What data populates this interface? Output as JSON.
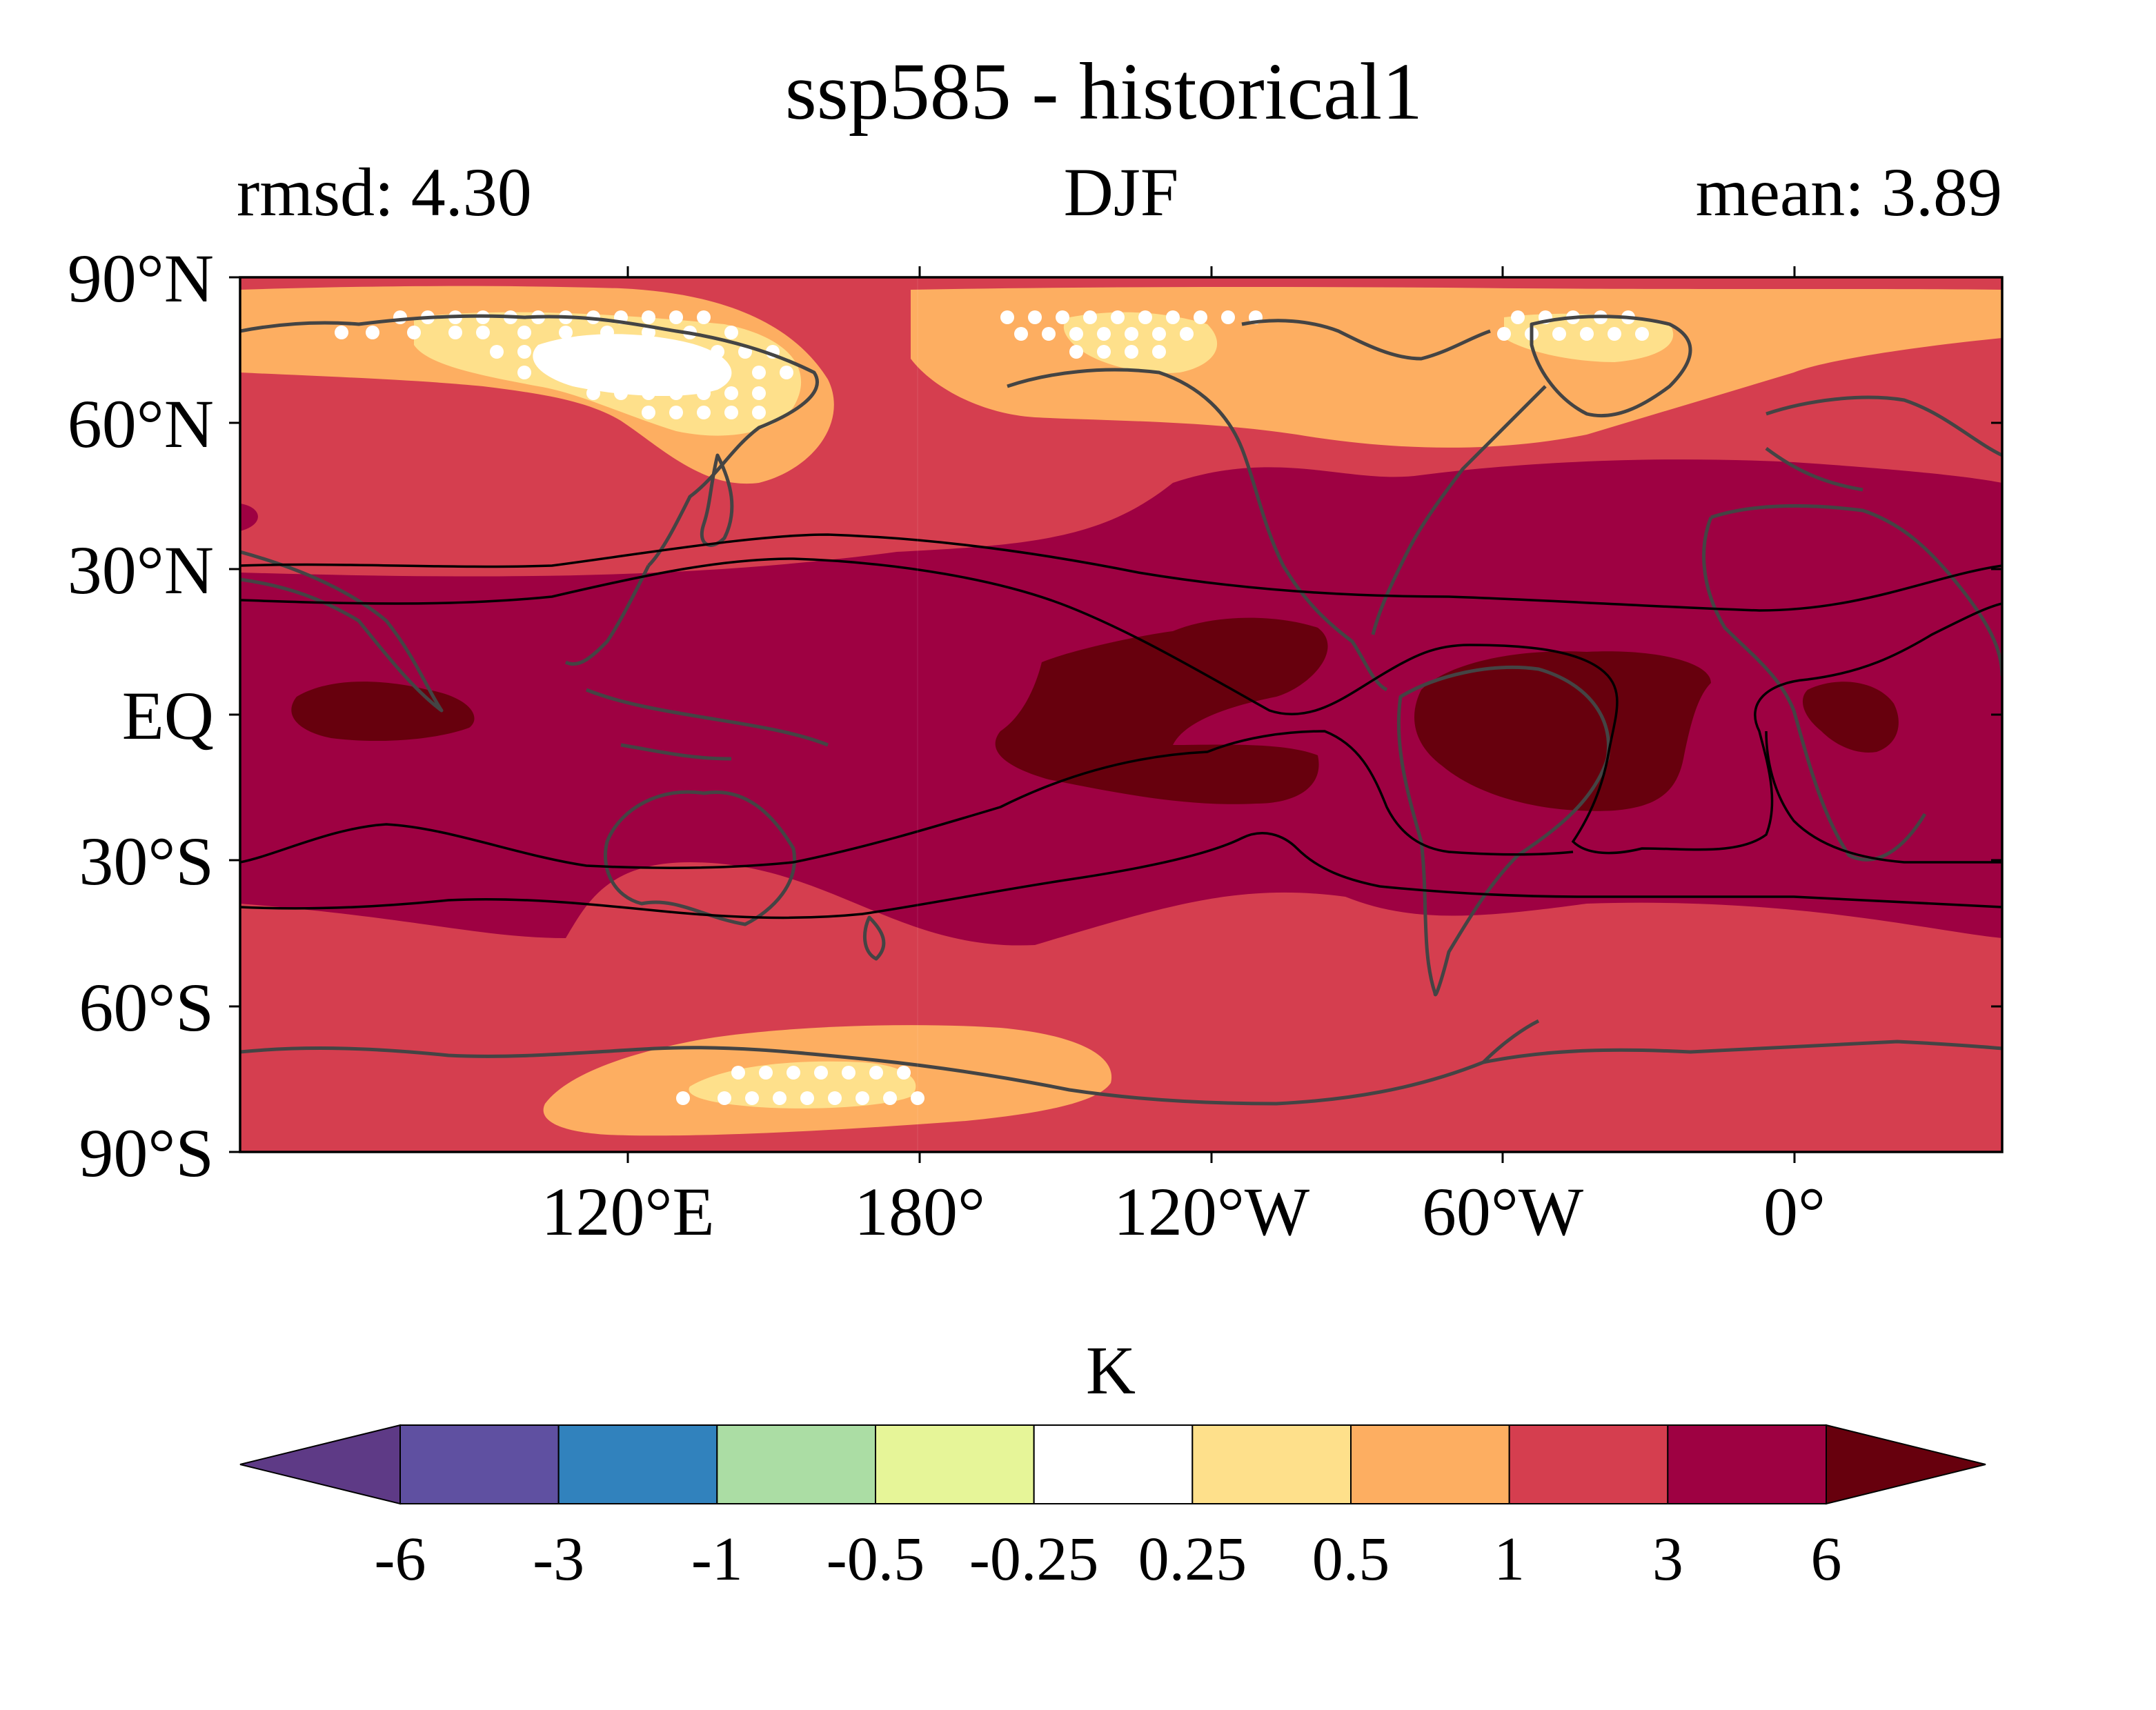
{
  "title": "ssp585 - historical1",
  "subtitle_left": "rmsd: 4.30",
  "subtitle_center": "DJF",
  "subtitle_right": "mean: 3.89",
  "lat_labels": [
    "90°N",
    "60°N",
    "30°N",
    "EQ",
    "30°S",
    "60°S",
    "90°S"
  ],
  "lon_labels": [
    "120°E",
    "180°",
    "120°W",
    "60°W",
    "0°"
  ],
  "colorbar": {
    "units": "K",
    "tick_labels": [
      "-6",
      "-3",
      "-1",
      "-0.5",
      "-0.25",
      "0.25",
      "0.5",
      "1",
      "3",
      "6"
    ],
    "colors": [
      "#5e3a86",
      "#5f50a1",
      "#3182bd",
      "#abdda4",
      "#e6f598",
      "#ffffff",
      "#fee08b",
      "#fdae61",
      "#d53e4f",
      "#9e0142",
      "#67000d"
    ]
  },
  "colors": {
    "level_0_25_to_0_5": "#fee08b",
    "level_0_5_to_1": "#fdae61",
    "level_1_to_3": "#d53e4f",
    "level_3_to_6": "#9e0142",
    "level_above_6": "#67000d",
    "coastline": "#444444",
    "stipple": "#ffffff"
  },
  "chart_data": {
    "type": "heatmap",
    "title": "ssp585 - historical1",
    "season": "DJF",
    "rmsd": 4.3,
    "mean": 3.89,
    "units": "K",
    "lat_ticks": [
      90,
      60,
      30,
      0,
      -30,
      -60,
      -90
    ],
    "lon_ticks": [
      120,
      180,
      -120,
      -60,
      0
    ],
    "levels": [
      -6,
      -3,
      -1,
      -0.5,
      -0.25,
      0.25,
      0.5,
      1,
      3,
      6
    ],
    "extend": "both"
  }
}
